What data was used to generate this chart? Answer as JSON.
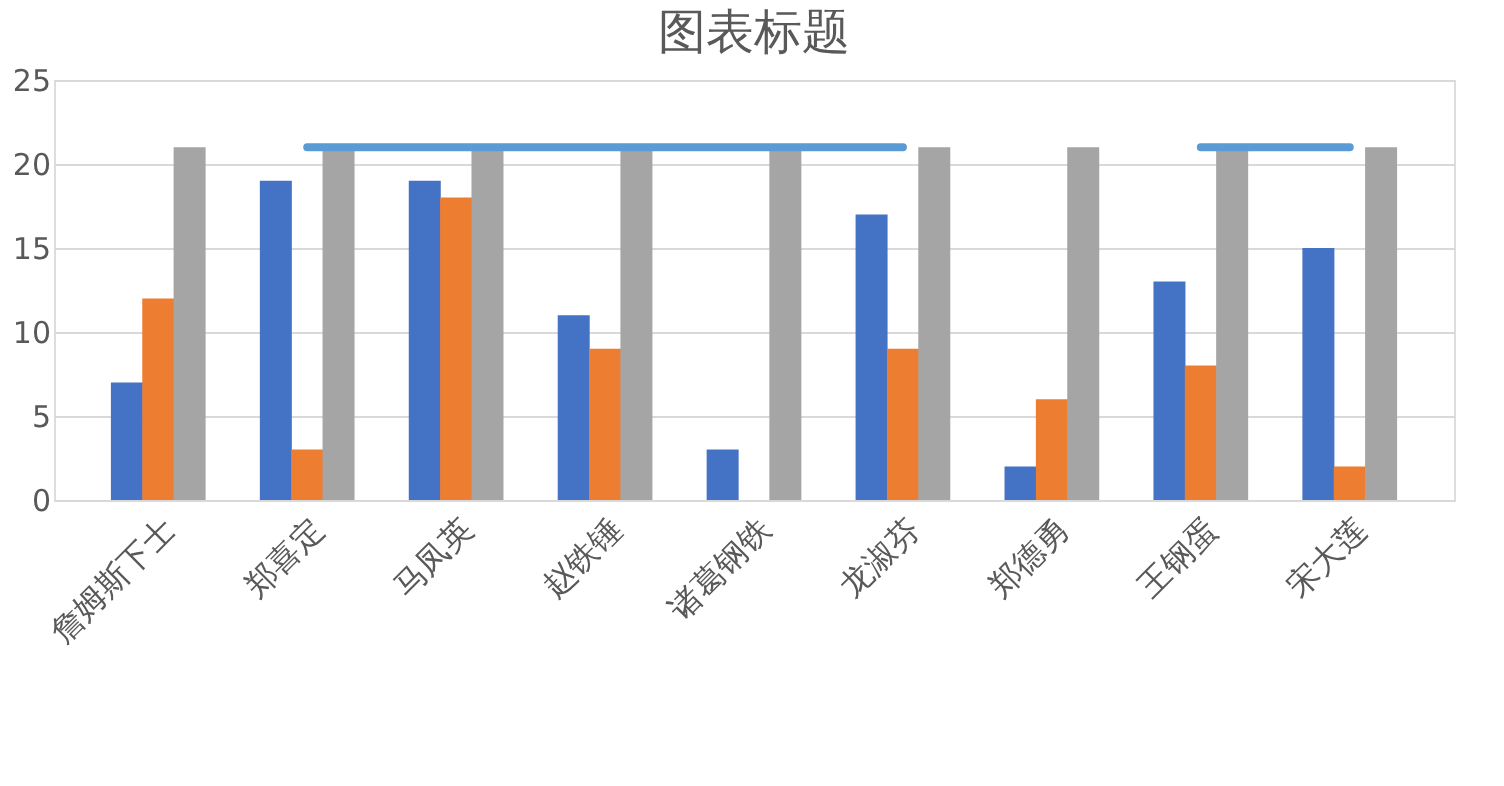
{
  "chart_data": {
    "type": "bar",
    "title": "图表标题",
    "categories": [
      "詹姆斯下士",
      "郑喜定",
      "马凤英",
      "赵铁锤",
      "诸葛钢铁",
      "龙淑芬",
      "郑德勇",
      "王钢蛋",
      "宋大莲"
    ],
    "series": [
      {
        "color": "#4472c4",
        "values": [
          7,
          19,
          19,
          11,
          3,
          17,
          2,
          13,
          15
        ]
      },
      {
        "color": "#ed7d31",
        "values": [
          12,
          3,
          18,
          9,
          null,
          9,
          6,
          8,
          2
        ]
      },
      {
        "color": "#a5a5a5",
        "values": [
          21,
          21,
          21,
          21,
          21,
          21,
          21,
          21,
          21
        ]
      },
      {
        "type": "line",
        "color": "#5b9bd5",
        "values": [
          null,
          21,
          21,
          21,
          21,
          21,
          null,
          21,
          21
        ]
      }
    ],
    "ylim": [
      0,
      25
    ],
    "yticks": [
      0,
      5,
      10,
      15,
      20,
      25
    ],
    "grid": "y",
    "legend": false
  }
}
